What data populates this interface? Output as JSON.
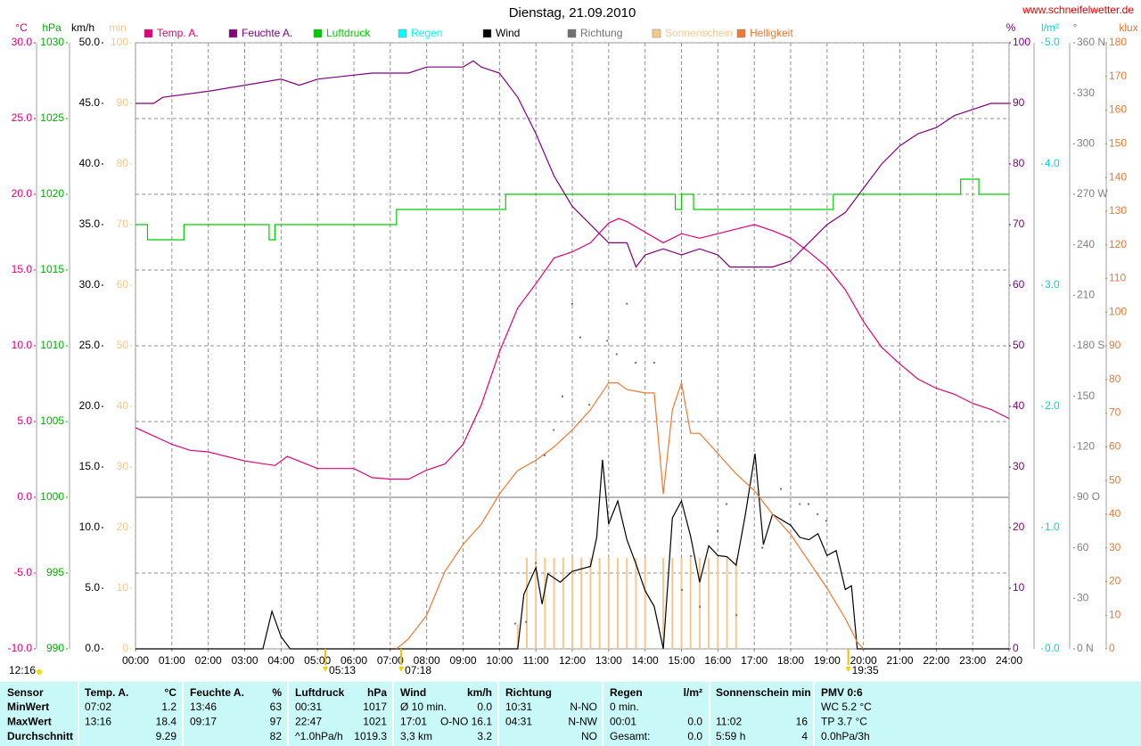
{
  "chart_data": {
    "type": "line",
    "title": "Dienstag, 21.09.2010",
    "source": "www.schneifelwetter.de",
    "xlim": [
      0,
      24
    ],
    "xticks": [
      {
        "value": 0,
        "label": "00:00"
      },
      {
        "value": 1,
        "label": "01:00"
      },
      {
        "value": 2,
        "label": "02:00"
      },
      {
        "value": 3,
        "label": "03:00"
      },
      {
        "value": 4,
        "label": "04:00"
      },
      {
        "value": 5,
        "label": "05:00"
      },
      {
        "value": 6,
        "label": "06:00"
      },
      {
        "value": 7,
        "label": "07:00"
      },
      {
        "value": 8,
        "label": "08:00"
      },
      {
        "value": 9,
        "label": "09:00"
      },
      {
        "value": 10,
        "label": "10:00"
      },
      {
        "value": 11,
        "label": "11:00"
      },
      {
        "value": 12,
        "label": "12:00"
      },
      {
        "value": 13,
        "label": "13:00"
      },
      {
        "value": 14,
        "label": "14:00"
      },
      {
        "value": 15,
        "label": "15:00"
      },
      {
        "value": 16,
        "label": "16:00"
      },
      {
        "value": 17,
        "label": "17:00"
      },
      {
        "value": 18,
        "label": "18:00"
      },
      {
        "value": 19,
        "label": "19:00"
      },
      {
        "value": 20,
        "label": "20:00"
      },
      {
        "value": 21,
        "label": "21:00"
      },
      {
        "value": 22,
        "label": "22:00"
      },
      {
        "value": 23,
        "label": "23:00"
      },
      {
        "value": 24,
        "label": "24:00"
      }
    ],
    "grid": true,
    "axes": [
      {
        "name": "°C",
        "color": "#e0007a",
        "lim": [
          -10,
          30
        ],
        "ticks": [
          {
            "value": -10,
            "label": "-10.0"
          },
          {
            "value": -5,
            "label": "-5.0"
          },
          {
            "value": 0,
            "label": "0.0"
          },
          {
            "value": 5,
            "label": "5.0"
          },
          {
            "value": 10,
            "label": "10.0"
          },
          {
            "value": 15,
            "label": "15.0"
          },
          {
            "value": 20,
            "label": "20.0"
          },
          {
            "value": 25,
            "label": "25.0"
          },
          {
            "value": 30,
            "label": "30.0"
          }
        ]
      },
      {
        "name": "hPa",
        "color": "#00b000",
        "lim": [
          990,
          1030
        ],
        "ticks": [
          990,
          995,
          1000,
          1005,
          1010,
          1015,
          1020,
          1025,
          1030
        ]
      },
      {
        "name": "km/h",
        "color": "#000000",
        "lim": [
          0,
          50
        ],
        "ticks": [
          {
            "value": 0,
            "label": "0.0"
          },
          {
            "value": 5,
            "label": "5.0"
          },
          {
            "value": 10,
            "label": "10.0"
          },
          {
            "value": 15,
            "label": "15.0"
          },
          {
            "value": 20,
            "label": "20.0"
          },
          {
            "value": 25,
            "label": "25.0"
          },
          {
            "value": 30,
            "label": "30.0"
          },
          {
            "value": 35,
            "label": "35.0"
          },
          {
            "value": 40,
            "label": "40.0"
          },
          {
            "value": 45,
            "label": "45.0"
          },
          {
            "value": 50,
            "label": "50.0"
          }
        ]
      },
      {
        "name": "min",
        "color": "#f5c88c",
        "lim": [
          0,
          100
        ],
        "ticks": [
          0,
          10,
          20,
          30,
          40,
          50,
          60,
          70,
          80,
          90,
          100
        ]
      },
      {
        "name": "%",
        "color": "#800080",
        "lim": [
          0,
          100
        ],
        "ticks": [
          0,
          10,
          20,
          30,
          40,
          50,
          60,
          70,
          80,
          90,
          100
        ]
      },
      {
        "name": "l/m²",
        "color": "#00d8d8",
        "lim": [
          0,
          5
        ],
        "ticks": [
          {
            "value": 0,
            "label": "0.0"
          },
          {
            "value": 1,
            "label": "1.0"
          },
          {
            "value": 2,
            "label": "2.0"
          },
          {
            "value": 3,
            "label": "3.0"
          },
          {
            "value": 4,
            "label": "4.0"
          },
          {
            "value": 5,
            "label": "5.0"
          }
        ]
      },
      {
        "name": "°",
        "color": "#808080",
        "lim": [
          0,
          360
        ],
        "ticks": [
          {
            "value": 0,
            "label": "0 N"
          },
          30,
          60,
          {
            "value": 90,
            "label": "90 O"
          },
          120,
          150,
          {
            "value": 180,
            "label": "180 S"
          },
          210,
          240,
          {
            "value": 270,
            "label": "270 W"
          },
          300,
          330,
          {
            "value": 360,
            "label": "360 N"
          }
        ]
      },
      {
        "name": "klux",
        "color": "#f07830",
        "lim": [
          0,
          180
        ],
        "ticks": [
          0,
          10,
          20,
          30,
          40,
          50,
          60,
          70,
          80,
          90,
          100,
          110,
          120,
          130,
          140,
          150,
          160,
          170,
          180
        ]
      }
    ],
    "series": [
      {
        "name": "Temp. A.",
        "color": "#e0007a",
        "axis": 0,
        "type": "line",
        "x": [
          0,
          1,
          1.5,
          2,
          3,
          3.83,
          4.17,
          5,
          6,
          6.5,
          7.03,
          7.5,
          8,
          8.5,
          9,
          9.5,
          10,
          10.5,
          11,
          11.5,
          12,
          12.5,
          13,
          13.27,
          13.5,
          14,
          14.5,
          15,
          15.5,
          16,
          16.5,
          17,
          17.5,
          18,
          18.5,
          19,
          19.5,
          20,
          20.5,
          21,
          21.5,
          22,
          22.5,
          23,
          23.5,
          24
        ],
        "values": [
          4.6,
          3.5,
          3.1,
          3.0,
          2.4,
          2.1,
          2.7,
          1.9,
          1.9,
          1.3,
          1.2,
          1.2,
          1.8,
          2.2,
          3.5,
          6.1,
          9.6,
          12.5,
          14.1,
          15.8,
          16.2,
          16.8,
          18.1,
          18.4,
          18.2,
          17.5,
          16.8,
          17.4,
          17.1,
          17.4,
          17.7,
          18.0,
          17.6,
          17.1,
          16.2,
          15.2,
          13.7,
          11.6,
          9.9,
          8.8,
          7.8,
          7.2,
          6.8,
          6.2,
          5.8,
          5.2
        ]
      },
      {
        "name": "Feuchte A.",
        "color": "#800080",
        "axis": 4,
        "type": "line",
        "x": [
          0,
          0.5,
          0.75,
          2,
          3,
          4,
          4.5,
          5,
          6.5,
          7.5,
          8,
          9,
          9.28,
          9.5,
          10,
          10.5,
          11,
          11.5,
          12,
          12.5,
          13,
          13.5,
          13.75,
          14,
          14.5,
          15,
          15.5,
          16,
          16.33,
          17,
          17.5,
          18,
          18.5,
          19,
          19.5,
          20,
          20.5,
          21,
          21.5,
          22,
          22.5,
          23,
          23.5,
          24
        ],
        "values": [
          90,
          90,
          91,
          92,
          93,
          94,
          93,
          94,
          95,
          95,
          96,
          96,
          97,
          96,
          95,
          91,
          85,
          78,
          73,
          70,
          67,
          67,
          63,
          65,
          66,
          65,
          66,
          65,
          63,
          63,
          63,
          64,
          67,
          70,
          72,
          76,
          80,
          83,
          85,
          86,
          88,
          89,
          90,
          90
        ]
      },
      {
        "name": "Luftdruck",
        "color": "#00cc00",
        "axis": 1,
        "type": "step",
        "x": [
          0,
          0.33,
          1.33,
          3.67,
          3.83,
          7.17,
          10.17,
          14.83,
          15.0,
          15.33,
          19.17,
          22.67,
          23.17,
          24
        ],
        "values": [
          1018,
          1017,
          1018,
          1017,
          1018,
          1019,
          1020,
          1019,
          1020,
          1019,
          1020,
          1021,
          1020,
          1020
        ]
      },
      {
        "name": "Regen",
        "color": "#00ffff",
        "axis": 5,
        "type": "line",
        "x": [],
        "values": []
      },
      {
        "name": "Wind",
        "color": "#000000",
        "axis": 2,
        "type": "line",
        "x": [
          0,
          3.5,
          3.75,
          4,
          4.25,
          10.5,
          10.67,
          11,
          11.17,
          11.33,
          11.67,
          12,
          12.5,
          12.67,
          12.83,
          13,
          13.25,
          13.5,
          13.75,
          14,
          14.25,
          14.5,
          14.75,
          15,
          15.25,
          15.5,
          15.75,
          16,
          16.25,
          16.5,
          16.75,
          17.02,
          17.25,
          17.5,
          18,
          18.25,
          18.5,
          18.75,
          19,
          19.25,
          19.5,
          19.67,
          19.83,
          24
        ],
        "values": [
          0,
          0,
          3.1,
          1,
          0,
          0,
          4.5,
          6.7,
          3.7,
          6.2,
          5.5,
          6.4,
          6.8,
          9.2,
          15.6,
          10.3,
          12.2,
          9,
          7,
          4.8,
          3.5,
          0,
          10.8,
          12.2,
          9.3,
          5.5,
          8.5,
          7.7,
          7.6,
          6.9,
          11,
          16.1,
          8.6,
          11.1,
          10.2,
          9.2,
          9,
          9.5,
          7.7,
          8.1,
          4.9,
          5.2,
          0,
          0
        ]
      },
      {
        "name": "Richtung",
        "color": "#707070",
        "axis": 6,
        "type": "scatter",
        "x": [
          10.43,
          10.73,
          11.0,
          11.24,
          11.49,
          11.73,
          12.0,
          12.22,
          12.47,
          12.96,
          13.22,
          13.5,
          13.74,
          14.25,
          15.01,
          15.26,
          15.5,
          15.99,
          16.24,
          16.51,
          17.22,
          17.73,
          18.25,
          18.49,
          18.74,
          18.98
        ],
        "values": [
          15,
          16,
          51,
          115,
          130,
          150,
          205,
          185,
          145,
          183,
          175,
          205,
          170,
          170,
          35,
          55,
          25,
          70,
          86,
          20,
          60,
          95,
          86,
          86,
          80,
          76
        ]
      },
      {
        "name": "Sonnenschein",
        "color": "#f5c88c",
        "axis": 3,
        "type": "bar",
        "x": [
          10.5,
          10.75,
          11,
          11.25,
          11.5,
          11.75,
          12,
          12.25,
          12.5,
          12.75,
          13,
          13.25,
          13.5,
          13.75,
          14,
          14.5,
          14.75,
          15,
          15.25,
          15.5,
          15.75,
          16,
          16.25,
          16.5
        ],
        "values": [
          4,
          15,
          16,
          15,
          15,
          15,
          15,
          15,
          15,
          15,
          15,
          15,
          15,
          15,
          15,
          15,
          15,
          15,
          15,
          15,
          15,
          15,
          15,
          15
        ]
      },
      {
        "name": "Helligkeit",
        "color": "#f07830",
        "axis": 7,
        "type": "line",
        "x": [
          7.17,
          7.5,
          8,
          8.5,
          9,
          9.5,
          10,
          10.5,
          11,
          11.5,
          12,
          12.5,
          13,
          13.25,
          13.5,
          14,
          14.25,
          14.5,
          14.75,
          15,
          15.25,
          15.5,
          16,
          16.5,
          17,
          17.5,
          18,
          18.5,
          19,
          19.5,
          19.83,
          20
        ],
        "values": [
          0,
          3,
          10,
          23,
          31,
          37,
          46,
          53,
          56,
          60,
          65,
          71,
          79,
          79,
          77,
          76,
          76,
          46,
          71,
          79,
          64,
          64,
          58,
          52,
          47,
          40,
          34,
          26,
          18,
          9,
          2,
          0
        ]
      }
    ],
    "noon": "12:16",
    "markers": [
      {
        "label": "05:13",
        "x": 5.217
      },
      {
        "label": "07:18",
        "x": 7.3
      },
      {
        "label": "19:35",
        "x": 19.583
      }
    ]
  },
  "table": {
    "columns": [
      [
        "Sensor"
      ],
      [
        "Temp. A.",
        "°C"
      ],
      [
        "Feuchte A.",
        "%"
      ],
      [
        "Luftdruck",
        "hPa"
      ],
      [
        "Wind",
        "km/h"
      ],
      [
        "Richtung"
      ],
      [
        "Regen",
        "l/m²"
      ],
      [
        "Sonnenschein min"
      ],
      [
        "PMV 0:6"
      ]
    ],
    "rows": [
      [
        "MinWert",
        [
          "07:02",
          "1.2"
        ],
        [
          "13:46",
          "63"
        ],
        [
          "00:31",
          "1017"
        ],
        [
          "Ø 10 min.",
          "0.0"
        ],
        [
          "10:31",
          "N-NO"
        ],
        [
          "0 min.",
          null
        ],
        [
          null,
          null
        ],
        [
          "WC 5.2 °C"
        ]
      ],
      [
        "MaxWert",
        [
          "13:16",
          "18.4"
        ],
        [
          "09:17",
          "97"
        ],
        [
          "22:47",
          "1021"
        ],
        [
          "17:01",
          "O-NO 16.1"
        ],
        [
          "04:31",
          "N-NW"
        ],
        [
          "00:01",
          "0.0"
        ],
        [
          "11:02",
          "16"
        ],
        [
          "TP 3.7 °C"
        ]
      ],
      [
        "Durchschnitt",
        [
          null,
          "9.29"
        ],
        [
          null,
          "82"
        ],
        [
          "^1.0hPa/h",
          "1019.3"
        ],
        [
          "3,3 km",
          "3.2"
        ],
        [
          null,
          "NO"
        ],
        [
          "Gesamt:",
          "0.0"
        ],
        [
          "5:59 h",
          "4"
        ],
        [
          "0.0hPa/3h"
        ]
      ]
    ]
  }
}
